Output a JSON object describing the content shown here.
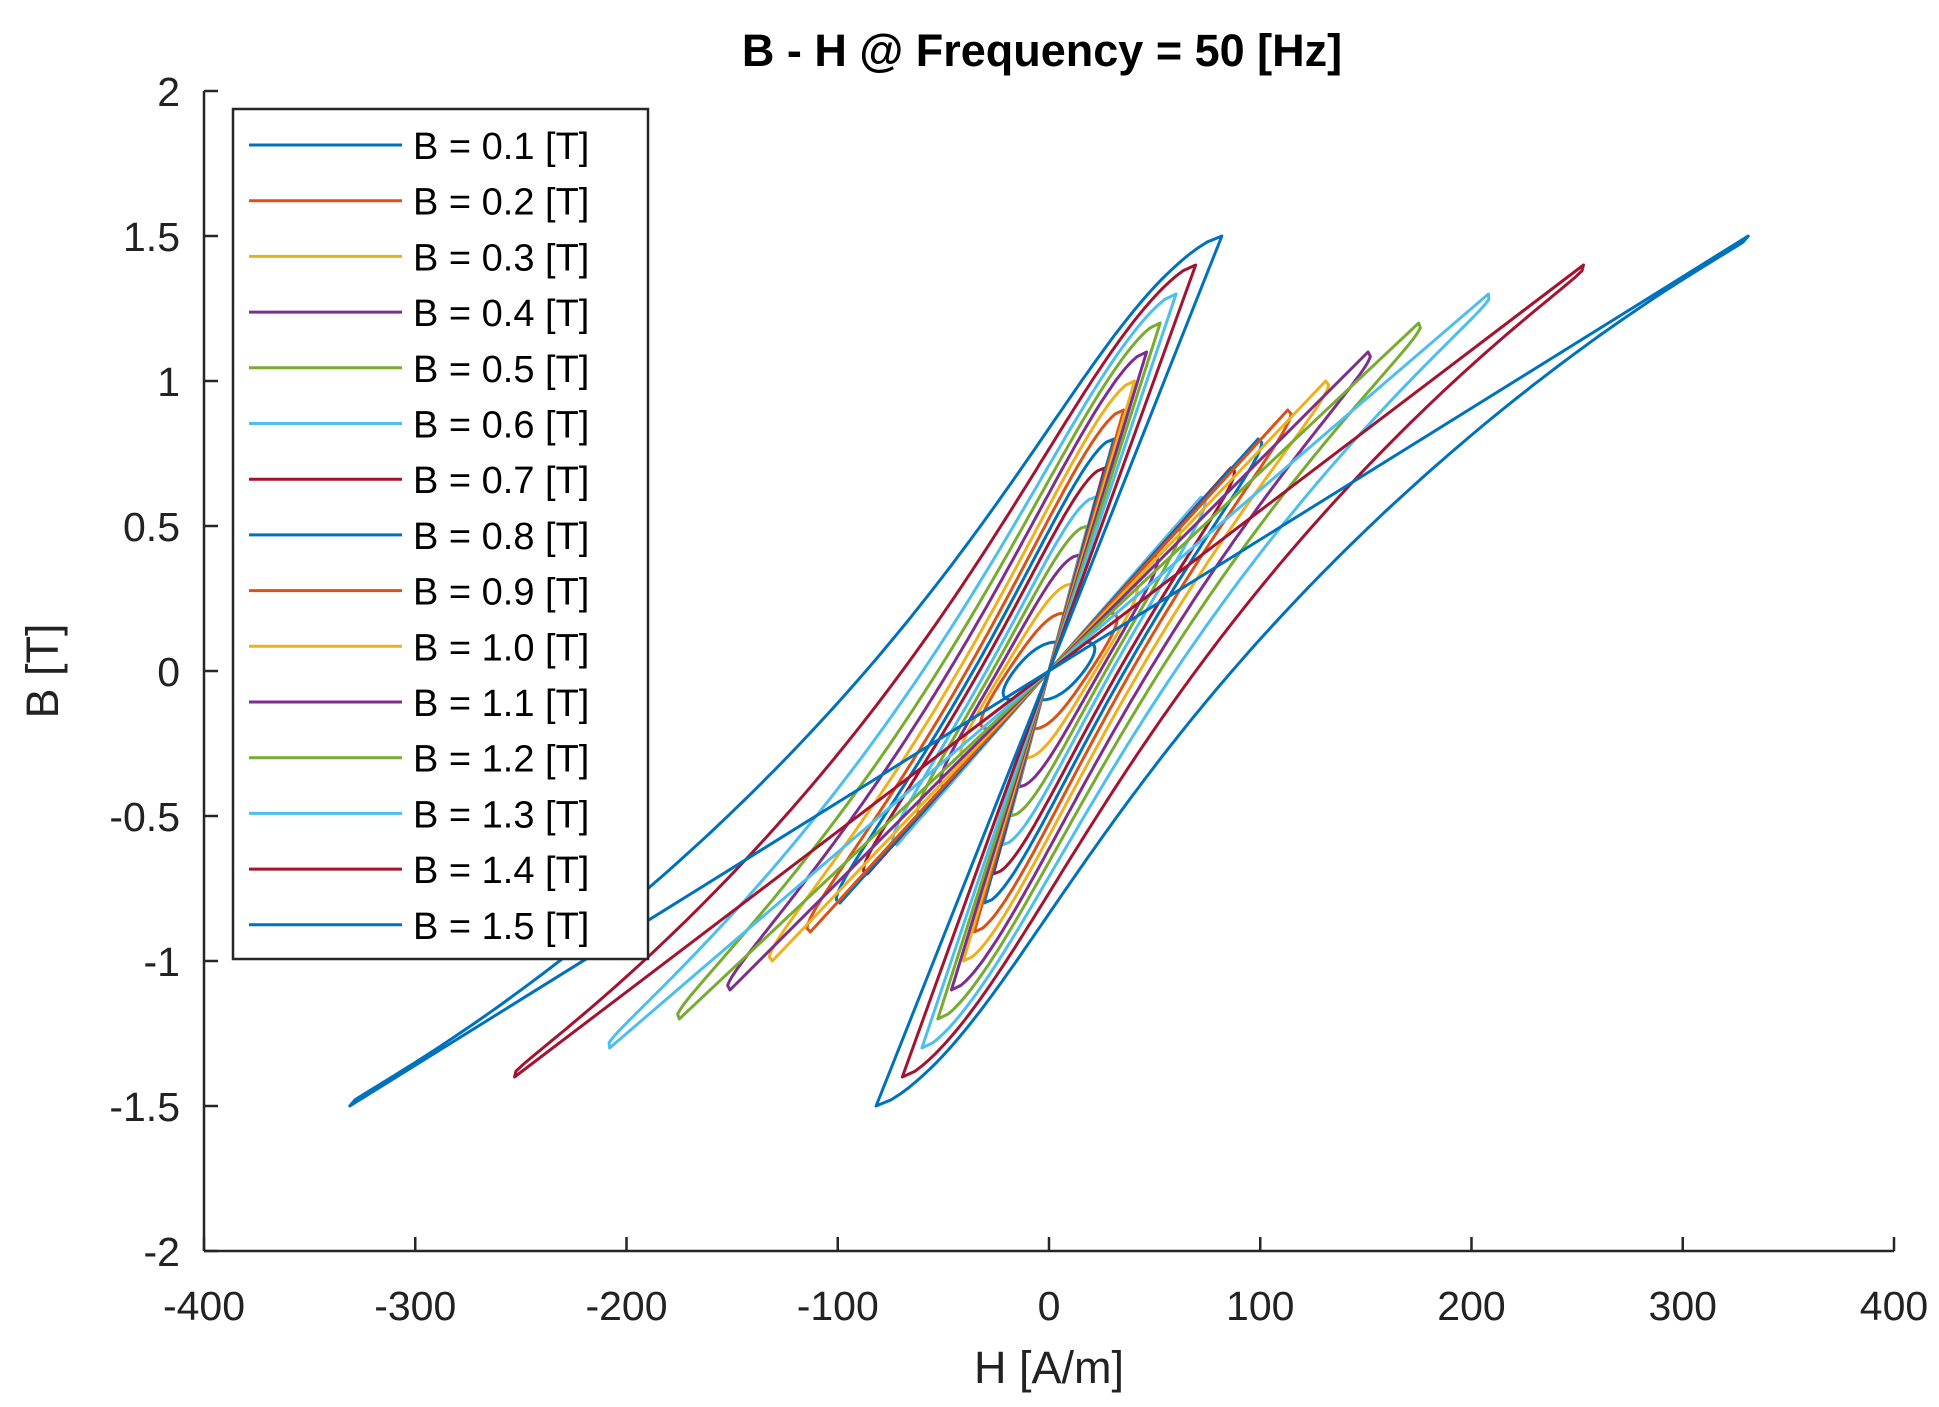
{
  "chart_data": {
    "type": "line",
    "title": "B - H @ Frequency = 50 [Hz]",
    "xlabel": "H [A/m]",
    "ylabel": "B [T]",
    "xlim": [
      -400,
      400
    ],
    "ylim": [
      -2,
      2
    ],
    "xticks": [
      -400,
      -300,
      -200,
      -100,
      0,
      100,
      200,
      300,
      400
    ],
    "yticks": [
      -2,
      -1.5,
      -1,
      -0.5,
      0,
      0.5,
      1,
      1.5,
      2
    ],
    "xtick_labels": [
      "-400",
      "-300",
      "-200",
      "-100",
      "0",
      "100",
      "200",
      "300",
      "400"
    ],
    "ytick_labels": [
      "-2",
      "-1.5",
      "-1",
      "-0.5",
      "0",
      "0.5",
      "1",
      "1.5",
      "2"
    ],
    "grid": false,
    "legend_position": "top-left",
    "series": [
      {
        "name": "B = 0.1 [T]",
        "bmax": 0.1,
        "hmax": 17,
        "color": "#0072BD"
      },
      {
        "name": "B = 0.2 [T]",
        "bmax": 0.2,
        "hmax": 29,
        "color": "#D95319"
      },
      {
        "name": "B = 0.3 [T]",
        "bmax": 0.3,
        "hmax": 39,
        "color": "#EDB120"
      },
      {
        "name": "B = 0.4 [T]",
        "bmax": 0.4,
        "hmax": 49,
        "color": "#7E2F8E"
      },
      {
        "name": "B = 0.5 [T]",
        "bmax": 0.5,
        "hmax": 60,
        "color": "#77AC30"
      },
      {
        "name": "B = 0.6 [T]",
        "bmax": 0.6,
        "hmax": 72,
        "color": "#4DBEEE"
      },
      {
        "name": "B = 0.7 [T]",
        "bmax": 0.7,
        "hmax": 86,
        "color": "#A2142F"
      },
      {
        "name": "B = 0.8 [T]",
        "bmax": 0.8,
        "hmax": 99,
        "color": "#0072BD"
      },
      {
        "name": "B = 0.9 [T]",
        "bmax": 0.9,
        "hmax": 113,
        "color": "#D95319"
      },
      {
        "name": "B = 1.0 [T]",
        "bmax": 1.0,
        "hmax": 131,
        "color": "#EDB120"
      },
      {
        "name": "B = 1.1 [T]",
        "bmax": 1.1,
        "hmax": 151,
        "color": "#7E2F8E"
      },
      {
        "name": "B = 1.2 [T]",
        "bmax": 1.2,
        "hmax": 175,
        "color": "#77AC30"
      },
      {
        "name": "B = 1.3 [T]",
        "bmax": 1.3,
        "hmax": 208,
        "color": "#4DBEEE"
      },
      {
        "name": "B = 1.4 [T]",
        "bmax": 1.4,
        "hmax": 253,
        "color": "#A2142F"
      },
      {
        "name": "B = 1.5 [T]",
        "bmax": 1.5,
        "hmax": 331,
        "color": "#0072BD"
      }
    ]
  }
}
